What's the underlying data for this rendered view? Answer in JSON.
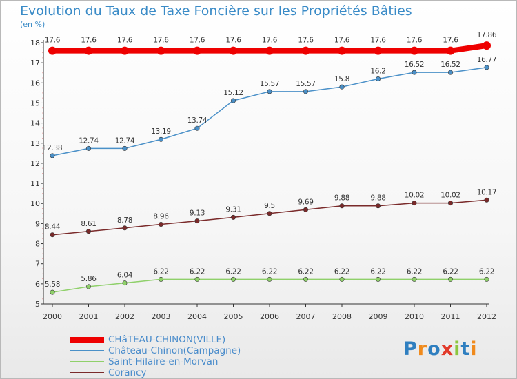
{
  "chart_data": {
    "type": "line",
    "title": "Evolution du Taux de Taxe Foncière sur les Propriétés Bâties",
    "unit": "(en %)",
    "x": [
      "2000",
      "2001",
      "2002",
      "2003",
      "2004",
      "2005",
      "2006",
      "2007",
      "2008",
      "2009",
      "2010",
      "2011",
      "2012"
    ],
    "ylim": [
      5,
      18
    ],
    "yticks": [
      "5",
      "6",
      "7",
      "8",
      "9",
      "10",
      "11",
      "12",
      "13",
      "14",
      "15",
      "16",
      "17",
      "18"
    ],
    "grid": false,
    "legend_position": "bottom-left",
    "series": [
      {
        "name": "CHâTEAU-CHINON(VILLE)",
        "color": "#ee0000",
        "values": [
          17.6,
          17.6,
          17.6,
          17.6,
          17.6,
          17.6,
          17.6,
          17.6,
          17.6,
          17.6,
          17.6,
          17.6,
          17.86
        ],
        "labels": [
          "17.6",
          "17.6",
          "17.6",
          "17.6",
          "17.6",
          "17.6",
          "17.6",
          "17.6",
          "17.6",
          "17.6",
          "17.6",
          "17.6",
          "17.86"
        ]
      },
      {
        "name": "Château-Chinon(Campagne)",
        "color": "#4a90c8",
        "values": [
          12.38,
          12.74,
          12.74,
          13.19,
          13.74,
          15.12,
          15.57,
          15.57,
          15.8,
          16.2,
          16.52,
          16.52,
          16.77
        ],
        "labels": [
          "12.38",
          "12.74",
          "12.74",
          "13.19",
          "13.74",
          "15.12",
          "15.57",
          "15.57",
          "15.8",
          "16.2",
          "16.52",
          "16.52",
          "16.77"
        ]
      },
      {
        "name": "Saint-Hilaire-en-Morvan",
        "color": "#8fd06a",
        "values": [
          5.58,
          5.86,
          6.04,
          6.22,
          6.22,
          6.22,
          6.22,
          6.22,
          6.22,
          6.22,
          6.22,
          6.22,
          6.22
        ],
        "labels": [
          "5.58",
          "5.86",
          "6.04",
          "6.22",
          "6.22",
          "6.22",
          "6.22",
          "6.22",
          "6.22",
          "6.22",
          "6.22",
          "6.22",
          "6.22"
        ]
      },
      {
        "name": "Corancy",
        "color": "#7a2a2a",
        "values": [
          8.44,
          8.61,
          8.78,
          8.96,
          9.13,
          9.31,
          9.5,
          9.69,
          9.88,
          9.88,
          10.02,
          10.02,
          10.17
        ],
        "labels": [
          "8.44",
          "8.61",
          "8.78",
          "8.96",
          "9.13",
          "9.31",
          "9.5",
          "9.69",
          "9.88",
          "9.88",
          "10.02",
          "10.02",
          "10.17"
        ]
      }
    ]
  },
  "logo": {
    "text": "Proxiti",
    "letters": [
      {
        "ch": "P",
        "color": "#2f7fc0"
      },
      {
        "ch": "r",
        "color": "#f08a1c"
      },
      {
        "ch": "o",
        "color": "#2f7fc0"
      },
      {
        "ch": "x",
        "color": "#e23a2a"
      },
      {
        "ch": "i",
        "color": "#8cc63f"
      },
      {
        "ch": "t",
        "color": "#2f7fc0"
      },
      {
        "ch": "i",
        "color": "#f08a1c"
      }
    ]
  }
}
